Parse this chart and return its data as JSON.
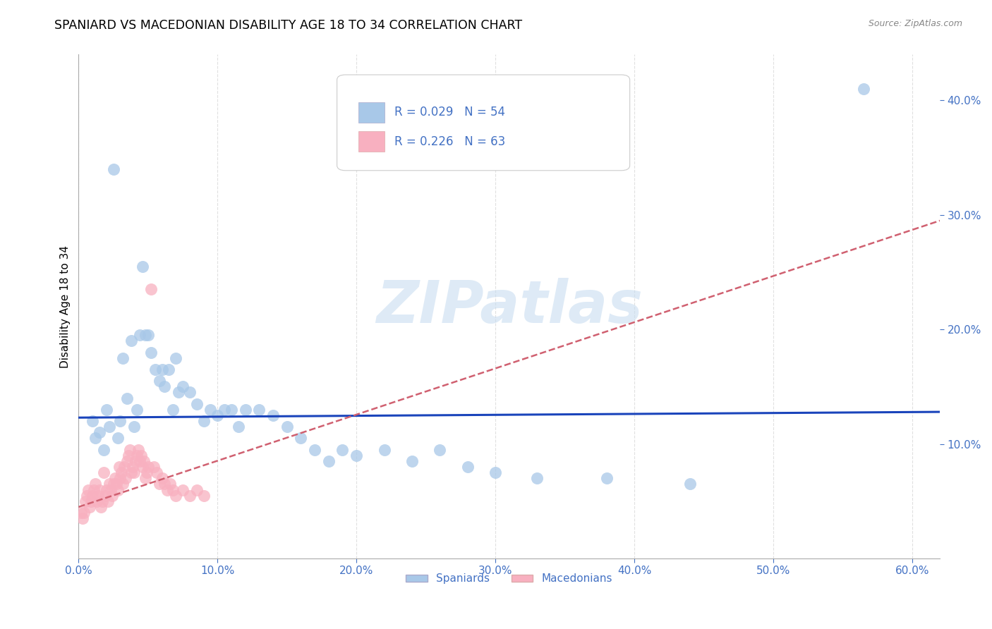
{
  "title": "SPANIARD VS MACEDONIAN DISABILITY AGE 18 TO 34 CORRELATION CHART",
  "source": "Source: ZipAtlas.com",
  "tick_color": "#4472c4",
  "ylabel": "Disability Age 18 to 34",
  "xlim": [
    0.0,
    0.62
  ],
  "ylim": [
    0.0,
    0.44
  ],
  "xticks": [
    0.0,
    0.1,
    0.2,
    0.3,
    0.4,
    0.5,
    0.6
  ],
  "yticks_right": [
    0.1,
    0.2,
    0.3,
    0.4
  ],
  "background_color": "#ffffff",
  "grid_color": "#e0e0e0",
  "spaniard_color": "#a8c8e8",
  "macedonian_color": "#f8b0c0",
  "spaniard_trend_color": "#1a44bb",
  "macedonian_trend_color": "#d06070",
  "r_spaniard": 0.029,
  "n_spaniard": 54,
  "r_macedonian": 0.226,
  "n_macedonian": 63,
  "watermark": "ZIPatlas",
  "legend_labels": [
    "Spaniards",
    "Macedonians"
  ],
  "spaniard_points": [
    [
      0.01,
      0.12
    ],
    [
      0.012,
      0.105
    ],
    [
      0.015,
      0.11
    ],
    [
      0.018,
      0.095
    ],
    [
      0.02,
      0.13
    ],
    [
      0.022,
      0.115
    ],
    [
      0.025,
      0.34
    ],
    [
      0.028,
      0.105
    ],
    [
      0.03,
      0.12
    ],
    [
      0.032,
      0.175
    ],
    [
      0.035,
      0.14
    ],
    [
      0.038,
      0.19
    ],
    [
      0.04,
      0.115
    ],
    [
      0.042,
      0.13
    ],
    [
      0.044,
      0.195
    ],
    [
      0.046,
      0.255
    ],
    [
      0.048,
      0.195
    ],
    [
      0.05,
      0.195
    ],
    [
      0.052,
      0.18
    ],
    [
      0.055,
      0.165
    ],
    [
      0.058,
      0.155
    ],
    [
      0.06,
      0.165
    ],
    [
      0.062,
      0.15
    ],
    [
      0.065,
      0.165
    ],
    [
      0.068,
      0.13
    ],
    [
      0.07,
      0.175
    ],
    [
      0.072,
      0.145
    ],
    [
      0.075,
      0.15
    ],
    [
      0.08,
      0.145
    ],
    [
      0.085,
      0.135
    ],
    [
      0.09,
      0.12
    ],
    [
      0.095,
      0.13
    ],
    [
      0.1,
      0.125
    ],
    [
      0.105,
      0.13
    ],
    [
      0.11,
      0.13
    ],
    [
      0.115,
      0.115
    ],
    [
      0.12,
      0.13
    ],
    [
      0.13,
      0.13
    ],
    [
      0.14,
      0.125
    ],
    [
      0.15,
      0.115
    ],
    [
      0.16,
      0.105
    ],
    [
      0.17,
      0.095
    ],
    [
      0.18,
      0.085
    ],
    [
      0.19,
      0.095
    ],
    [
      0.2,
      0.09
    ],
    [
      0.22,
      0.095
    ],
    [
      0.24,
      0.085
    ],
    [
      0.26,
      0.095
    ],
    [
      0.28,
      0.08
    ],
    [
      0.3,
      0.075
    ],
    [
      0.33,
      0.07
    ],
    [
      0.38,
      0.07
    ],
    [
      0.44,
      0.065
    ],
    [
      0.565,
      0.41
    ]
  ],
  "macedonian_points": [
    [
      0.002,
      0.04
    ],
    [
      0.003,
      0.035
    ],
    [
      0.004,
      0.04
    ],
    [
      0.005,
      0.05
    ],
    [
      0.006,
      0.055
    ],
    [
      0.007,
      0.06
    ],
    [
      0.008,
      0.045
    ],
    [
      0.009,
      0.05
    ],
    [
      0.01,
      0.055
    ],
    [
      0.011,
      0.06
    ],
    [
      0.012,
      0.065
    ],
    [
      0.013,
      0.05
    ],
    [
      0.014,
      0.055
    ],
    [
      0.015,
      0.06
    ],
    [
      0.016,
      0.045
    ],
    [
      0.017,
      0.05
    ],
    [
      0.018,
      0.075
    ],
    [
      0.019,
      0.055
    ],
    [
      0.02,
      0.06
    ],
    [
      0.021,
      0.05
    ],
    [
      0.022,
      0.065
    ],
    [
      0.023,
      0.06
    ],
    [
      0.024,
      0.055
    ],
    [
      0.025,
      0.065
    ],
    [
      0.026,
      0.07
    ],
    [
      0.027,
      0.065
    ],
    [
      0.028,
      0.06
    ],
    [
      0.029,
      0.08
    ],
    [
      0.03,
      0.07
    ],
    [
      0.031,
      0.075
    ],
    [
      0.032,
      0.065
    ],
    [
      0.033,
      0.08
    ],
    [
      0.034,
      0.07
    ],
    [
      0.035,
      0.085
    ],
    [
      0.036,
      0.09
    ],
    [
      0.037,
      0.095
    ],
    [
      0.038,
      0.075
    ],
    [
      0.039,
      0.08
    ],
    [
      0.04,
      0.075
    ],
    [
      0.041,
      0.085
    ],
    [
      0.042,
      0.09
    ],
    [
      0.043,
      0.095
    ],
    [
      0.044,
      0.085
    ],
    [
      0.045,
      0.09
    ],
    [
      0.046,
      0.08
    ],
    [
      0.047,
      0.085
    ],
    [
      0.048,
      0.07
    ],
    [
      0.049,
      0.075
    ],
    [
      0.05,
      0.08
    ],
    [
      0.052,
      0.235
    ],
    [
      0.054,
      0.08
    ],
    [
      0.056,
      0.075
    ],
    [
      0.058,
      0.065
    ],
    [
      0.06,
      0.07
    ],
    [
      0.062,
      0.065
    ],
    [
      0.064,
      0.06
    ],
    [
      0.066,
      0.065
    ],
    [
      0.068,
      0.06
    ],
    [
      0.07,
      0.055
    ],
    [
      0.075,
      0.06
    ],
    [
      0.08,
      0.055
    ],
    [
      0.085,
      0.06
    ],
    [
      0.09,
      0.055
    ]
  ],
  "spaniard_trend_start_y": 0.123,
  "spaniard_trend_end_y": 0.128,
  "macedonian_trend_start_y": 0.045,
  "macedonian_trend_end_y": 0.295
}
